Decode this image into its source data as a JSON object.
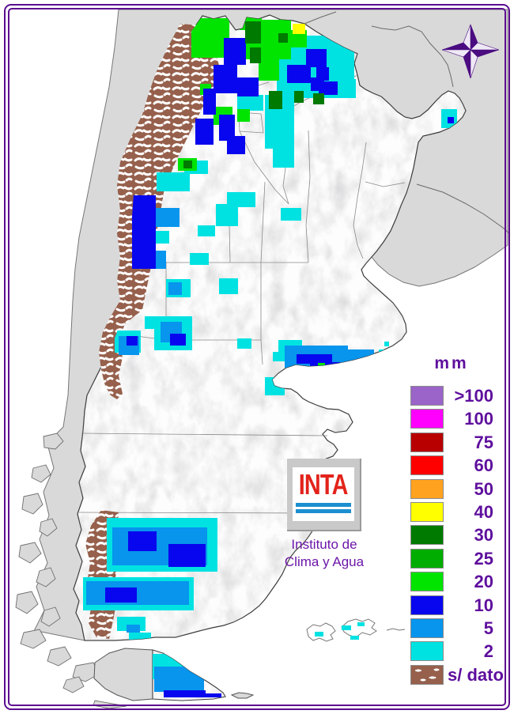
{
  "legend": {
    "title": "mm",
    "items": [
      {
        "label": ">100",
        "color": "#9A64C8"
      },
      {
        "label": "100",
        "color": "#FF00FE"
      },
      {
        "label": "75",
        "color": "#B80000"
      },
      {
        "label": "60",
        "color": "#FE0000"
      },
      {
        "label": "50",
        "color": "#FFA21F"
      },
      {
        "label": "40",
        "color": "#FFFF00"
      },
      {
        "label": "30",
        "color": "#007A00"
      },
      {
        "label": "25",
        "color": "#00AD00"
      },
      {
        "label": "20",
        "color": "#00E400"
      },
      {
        "label": "10",
        "color": "#0806EE"
      },
      {
        "label": "5",
        "color": "#0795ED"
      },
      {
        "label": "2",
        "color": "#00E2E2"
      },
      {
        "label": "s/ dato",
        "color": "#96604C",
        "pattern": "no-data"
      }
    ]
  },
  "logo": {
    "acronym": "INTA",
    "subtitle_line1": "Instituto de",
    "subtitle_line2": "Clima y Agua"
  },
  "map": {
    "frame_color": "#5C0D8F",
    "text_color": "#5E0F9D",
    "palette": {
      "mm2": "#00E2E2",
      "mm5": "#0795ED",
      "mm10": "#0806EE",
      "mm20": "#00E400",
      "mm25": "#00AD00",
      "mm30": "#007A00",
      "mm40": "#FFFF00",
      "no_data": "#96604C",
      "argentina_fill": "#FDFDFD",
      "neighbor_fill": "#D9D9D9",
      "ocean": "#FFFFFF",
      "border_line": "#3A3A3A",
      "province_line": "#8A8A8A"
    }
  }
}
